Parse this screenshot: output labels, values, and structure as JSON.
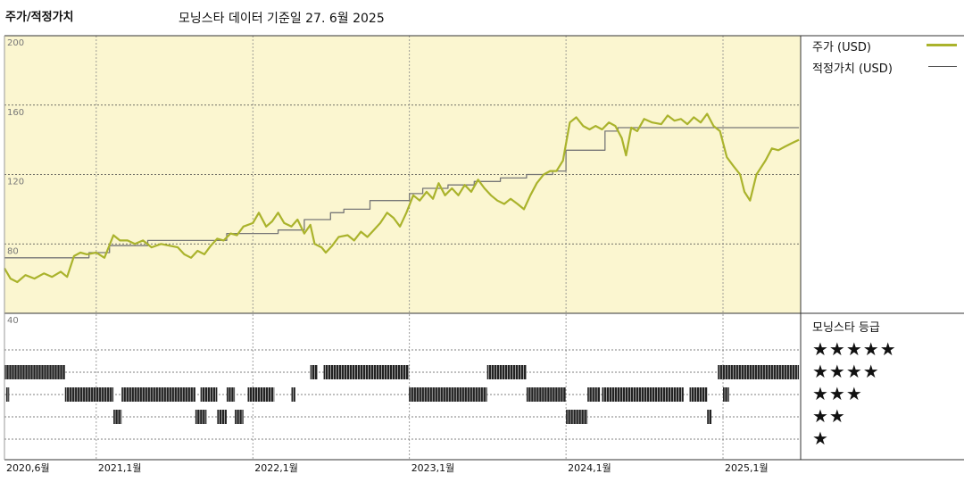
{
  "header": {
    "title": "주가/적정가치",
    "subtitle": "모닝스타 데이터 기준일 27. 6월 2025"
  },
  "legend": {
    "price_label": "주가 (USD)",
    "fair_label": "적정가치 (USD)",
    "price_color": "#aab32c",
    "fair_color": "#777777"
  },
  "rating": {
    "title": "모닝스타 등급",
    "stars": [
      "★★★★★",
      "★★★★",
      "★★★",
      "★★",
      "★"
    ]
  },
  "chart_data": {
    "type": "line",
    "ylim": [
      40,
      200
    ],
    "yticks": [
      "200",
      "160",
      "120",
      "80",
      "40"
    ],
    "x_range": [
      "2020-06-01",
      "2025-07-01"
    ],
    "x_ticks": [
      {
        "date": "2020-06-01",
        "label": "2020,6월"
      },
      {
        "date": "2021-01-01",
        "label": "2021,1월"
      },
      {
        "date": "2022-01-01",
        "label": "2022,1월"
      },
      {
        "date": "2023-01-01",
        "label": "2023,1월"
      },
      {
        "date": "2024-01-01",
        "label": "2024,1월"
      },
      {
        "date": "2025-01-01",
        "label": "2025,1월"
      }
    ],
    "series": [
      {
        "name": "주가 (USD)",
        "color": "#aab32c",
        "points": [
          [
            "2020-06-01",
            66
          ],
          [
            "2020-06-15",
            60
          ],
          [
            "2020-07-01",
            58
          ],
          [
            "2020-07-20",
            62
          ],
          [
            "2020-08-10",
            60
          ],
          [
            "2020-09-01",
            63
          ],
          [
            "2020-09-20",
            61
          ],
          [
            "2020-10-10",
            64
          ],
          [
            "2020-10-25",
            61
          ],
          [
            "2020-11-10",
            73
          ],
          [
            "2020-11-25",
            75
          ],
          [
            "2020-12-10",
            74
          ],
          [
            "2021-01-01",
            75
          ],
          [
            "2021-01-20",
            72
          ],
          [
            "2021-02-10",
            85
          ],
          [
            "2021-02-25",
            82
          ],
          [
            "2021-03-15",
            82
          ],
          [
            "2021-04-01",
            80
          ],
          [
            "2021-04-20",
            82
          ],
          [
            "2021-05-10",
            78
          ],
          [
            "2021-06-01",
            80
          ],
          [
            "2021-06-20",
            79
          ],
          [
            "2021-07-10",
            78
          ],
          [
            "2021-07-25",
            74
          ],
          [
            "2021-08-10",
            72
          ],
          [
            "2021-08-25",
            76
          ],
          [
            "2021-09-10",
            74
          ],
          [
            "2021-09-25",
            79
          ],
          [
            "2021-10-10",
            83
          ],
          [
            "2021-10-25",
            82
          ],
          [
            "2021-11-10",
            86
          ],
          [
            "2021-11-25",
            85
          ],
          [
            "2021-12-10",
            90
          ],
          [
            "2022-01-01",
            92
          ],
          [
            "2022-01-15",
            98
          ],
          [
            "2022-02-01",
            90
          ],
          [
            "2022-02-15",
            93
          ],
          [
            "2022-03-01",
            98
          ],
          [
            "2022-03-15",
            92
          ],
          [
            "2022-04-01",
            90
          ],
          [
            "2022-04-15",
            94
          ],
          [
            "2022-05-01",
            86
          ],
          [
            "2022-05-15",
            91
          ],
          [
            "2022-05-25",
            80
          ],
          [
            "2022-06-10",
            78
          ],
          [
            "2022-06-20",
            75
          ],
          [
            "2022-07-05",
            79
          ],
          [
            "2022-07-20",
            84
          ],
          [
            "2022-08-10",
            85
          ],
          [
            "2022-08-25",
            82
          ],
          [
            "2022-09-10",
            87
          ],
          [
            "2022-09-25",
            84
          ],
          [
            "2022-10-10",
            88
          ],
          [
            "2022-10-25",
            92
          ],
          [
            "2022-11-10",
            98
          ],
          [
            "2022-11-25",
            95
          ],
          [
            "2022-12-10",
            90
          ],
          [
            "2022-12-25",
            98
          ],
          [
            "2023-01-10",
            108
          ],
          [
            "2023-01-25",
            105
          ],
          [
            "2023-02-10",
            110
          ],
          [
            "2023-02-25",
            106
          ],
          [
            "2023-03-10",
            115
          ],
          [
            "2023-03-25",
            108
          ],
          [
            "2023-04-10",
            112
          ],
          [
            "2023-04-25",
            108
          ],
          [
            "2023-05-10",
            114
          ],
          [
            "2023-05-25",
            110
          ],
          [
            "2023-06-10",
            117
          ],
          [
            "2023-06-25",
            112
          ],
          [
            "2023-07-10",
            108
          ],
          [
            "2023-07-25",
            105
          ],
          [
            "2023-08-10",
            103
          ],
          [
            "2023-08-25",
            106
          ],
          [
            "2023-09-10",
            103
          ],
          [
            "2023-09-25",
            100
          ],
          [
            "2023-10-10",
            108
          ],
          [
            "2023-10-25",
            115
          ],
          [
            "2023-11-10",
            120
          ],
          [
            "2023-11-25",
            122
          ],
          [
            "2023-12-10",
            122
          ],
          [
            "2023-12-25",
            128
          ],
          [
            "2024-01-10",
            150
          ],
          [
            "2024-01-25",
            153
          ],
          [
            "2024-02-10",
            148
          ],
          [
            "2024-02-25",
            146
          ],
          [
            "2024-03-10",
            148
          ],
          [
            "2024-03-25",
            146
          ],
          [
            "2024-04-10",
            150
          ],
          [
            "2024-04-25",
            148
          ],
          [
            "2024-05-10",
            141
          ],
          [
            "2024-05-20",
            131
          ],
          [
            "2024-06-01",
            147
          ],
          [
            "2024-06-15",
            145
          ],
          [
            "2024-07-01",
            152
          ],
          [
            "2024-07-20",
            150
          ],
          [
            "2024-08-10",
            149
          ],
          [
            "2024-08-25",
            154
          ],
          [
            "2024-09-10",
            151
          ],
          [
            "2024-09-25",
            152
          ],
          [
            "2024-10-10",
            149
          ],
          [
            "2024-10-25",
            153
          ],
          [
            "2024-11-10",
            150
          ],
          [
            "2024-11-25",
            155
          ],
          [
            "2024-12-10",
            148
          ],
          [
            "2024-12-25",
            145
          ],
          [
            "2025-01-10",
            130
          ],
          [
            "2025-01-25",
            125
          ],
          [
            "2025-02-10",
            120
          ],
          [
            "2025-02-20",
            110
          ],
          [
            "2025-03-05",
            105
          ],
          [
            "2025-03-20",
            120
          ],
          [
            "2025-04-10",
            128
          ],
          [
            "2025-04-25",
            135
          ],
          [
            "2025-05-10",
            134
          ],
          [
            "2025-05-25",
            136
          ],
          [
            "2025-06-10",
            138
          ],
          [
            "2025-06-27",
            140
          ]
        ]
      },
      {
        "name": "적정가치 (USD)",
        "color": "#777777",
        "points": [
          [
            "2020-06-01",
            72
          ],
          [
            "2020-12-15",
            72
          ],
          [
            "2020-12-15",
            75
          ],
          [
            "2021-02-01",
            75
          ],
          [
            "2021-02-01",
            79
          ],
          [
            "2021-05-01",
            79
          ],
          [
            "2021-05-01",
            82
          ],
          [
            "2021-11-01",
            82
          ],
          [
            "2021-11-01",
            86
          ],
          [
            "2022-03-01",
            86
          ],
          [
            "2022-03-01",
            88
          ],
          [
            "2022-05-01",
            88
          ],
          [
            "2022-05-01",
            94
          ],
          [
            "2022-07-01",
            94
          ],
          [
            "2022-07-01",
            98
          ],
          [
            "2022-08-01",
            98
          ],
          [
            "2022-08-01",
            100
          ],
          [
            "2022-10-01",
            100
          ],
          [
            "2022-10-01",
            105
          ],
          [
            "2023-01-01",
            105
          ],
          [
            "2023-01-01",
            109
          ],
          [
            "2023-02-01",
            109
          ],
          [
            "2023-02-01",
            112
          ],
          [
            "2023-04-01",
            112
          ],
          [
            "2023-04-01",
            114
          ],
          [
            "2023-06-01",
            114
          ],
          [
            "2023-06-01",
            116
          ],
          [
            "2023-08-01",
            116
          ],
          [
            "2023-08-01",
            118
          ],
          [
            "2023-10-01",
            118
          ],
          [
            "2023-10-01",
            120
          ],
          [
            "2023-12-01",
            120
          ],
          [
            "2023-12-01",
            122
          ],
          [
            "2024-01-01",
            122
          ],
          [
            "2024-01-01",
            134
          ],
          [
            "2024-04-01",
            134
          ],
          [
            "2024-04-01",
            145
          ],
          [
            "2024-05-01",
            145
          ],
          [
            "2024-05-01",
            147
          ],
          [
            "2025-06-27",
            147
          ]
        ]
      }
    ],
    "rating_rows": [
      {
        "stars": 5,
        "segments": []
      },
      {
        "stars": 4,
        "segments": [
          [
            "2020-06-01",
            "2020-10-20"
          ],
          [
            "2022-05-15",
            "2022-06-01"
          ],
          [
            "2022-06-15",
            "2022-12-31"
          ],
          [
            "2023-07-01",
            "2023-10-01"
          ],
          [
            "2024-12-20",
            "2025-06-27"
          ]
        ]
      },
      {
        "stars": 3,
        "segments": [
          [
            "2020-06-05",
            "2020-06-12"
          ],
          [
            "2020-10-20",
            "2021-02-10"
          ],
          [
            "2021-03-01",
            "2021-08-20"
          ],
          [
            "2021-09-01",
            "2021-10-10"
          ],
          [
            "2021-11-01",
            "2021-11-20"
          ],
          [
            "2021-12-20",
            "2022-02-20"
          ],
          [
            "2022-04-01",
            "2022-04-10"
          ],
          [
            "2022-12-31",
            "2023-07-01"
          ],
          [
            "2023-10-01",
            "2023-12-31"
          ],
          [
            "2024-02-20",
            "2024-03-20"
          ],
          [
            "2024-03-25",
            "2024-10-01"
          ],
          [
            "2024-10-15",
            "2024-11-25"
          ],
          [
            "2025-01-01",
            "2025-01-15"
          ]
        ]
      },
      {
        "stars": 2,
        "segments": [
          [
            "2021-02-10",
            "2021-03-01"
          ],
          [
            "2021-08-20",
            "2021-09-15"
          ],
          [
            "2021-10-10",
            "2021-11-01"
          ],
          [
            "2021-11-20",
            "2021-12-10"
          ],
          [
            "2024-01-01",
            "2024-02-20"
          ],
          [
            "2024-11-25",
            "2024-12-05"
          ]
        ]
      },
      {
        "stars": 1,
        "segments": []
      }
    ]
  }
}
